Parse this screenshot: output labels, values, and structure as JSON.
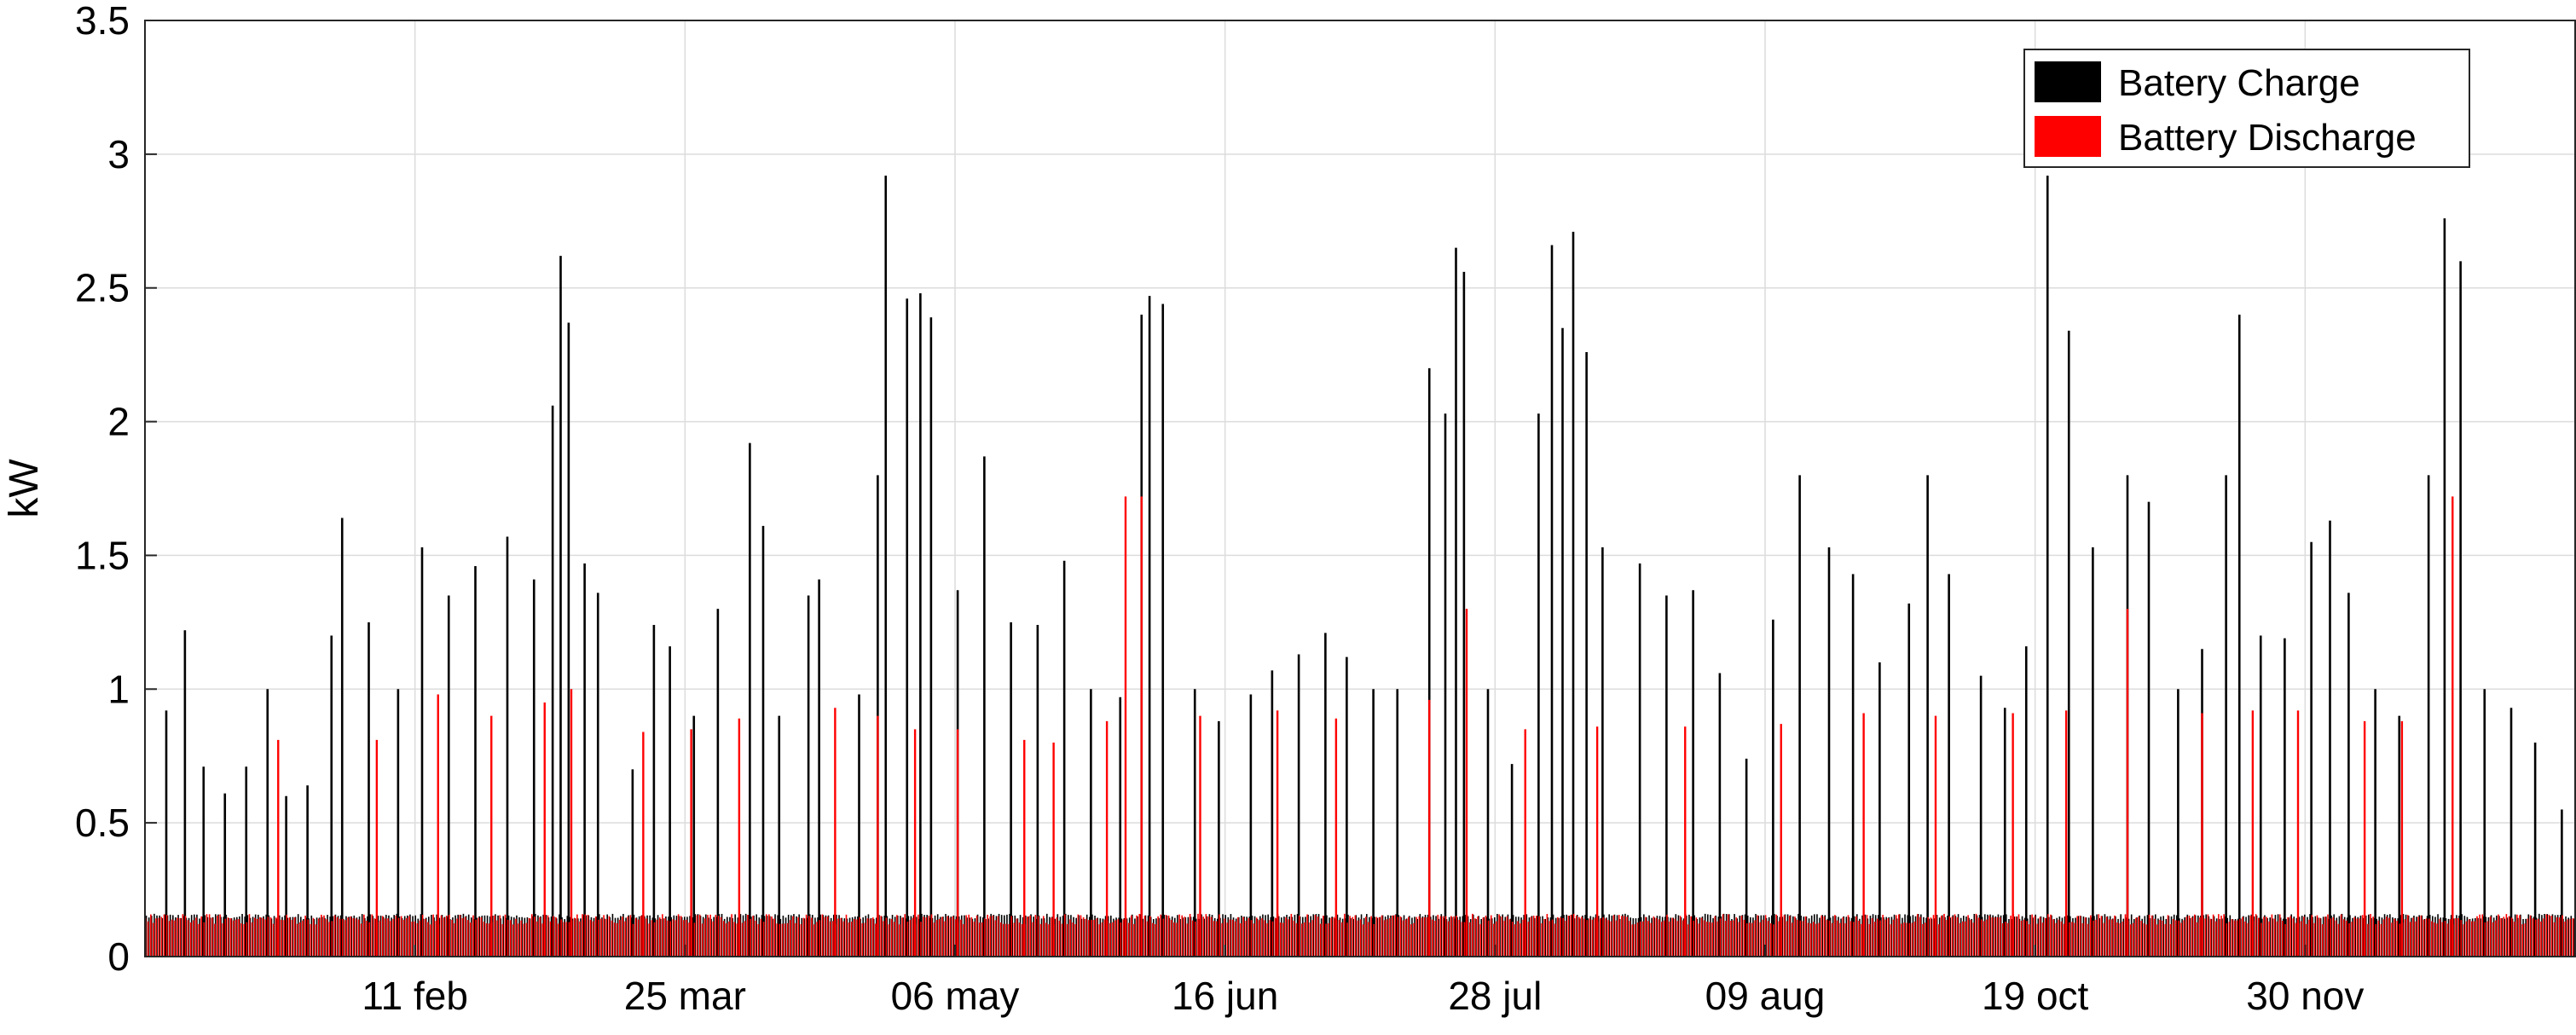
{
  "chart_data": {
    "type": "bar",
    "title": "",
    "xlabel": "",
    "ylabel": "kW",
    "ylim": [
      0,
      3.5
    ],
    "yticks": [
      {
        "value": 0,
        "label": "0"
      },
      {
        "value": 0.5,
        "label": "0.5"
      },
      {
        "value": 1,
        "label": "1"
      },
      {
        "value": 1.5,
        "label": "1.5"
      },
      {
        "value": 2,
        "label": "2"
      },
      {
        "value": 2.5,
        "label": "2.5"
      },
      {
        "value": 3,
        "label": "3"
      },
      {
        "value": 3.5,
        "label": "3.5"
      }
    ],
    "xticks": [
      "11 feb",
      "25 mar",
      "06 may",
      "16 jun",
      "28 jul",
      "09 aug",
      "19 oct",
      "30 nov"
    ],
    "grid": true,
    "legend_position": "top-right",
    "series": [
      {
        "name": "Batery Charge",
        "color": "#000000",
        "peaks": [
          {
            "day": 8,
            "value": 0.92
          },
          {
            "day": 15,
            "value": 1.22
          },
          {
            "day": 22,
            "value": 0.71
          },
          {
            "day": 30,
            "value": 0.61
          },
          {
            "day": 38,
            "value": 0.71
          },
          {
            "day": 46,
            "value": 1.0
          },
          {
            "day": 53,
            "value": 0.6
          },
          {
            "day": 61,
            "value": 0.64
          },
          {
            "day": 70,
            "value": 1.2
          },
          {
            "day": 74,
            "value": 1.64
          },
          {
            "day": 84,
            "value": 1.25
          },
          {
            "day": 95,
            "value": 1.0
          },
          {
            "day": 104,
            "value": 1.53
          },
          {
            "day": 114,
            "value": 1.35
          },
          {
            "day": 124,
            "value": 1.46
          },
          {
            "day": 136,
            "value": 1.57
          },
          {
            "day": 146,
            "value": 1.41
          },
          {
            "day": 153,
            "value": 2.06
          },
          {
            "day": 156,
            "value": 2.62
          },
          {
            "day": 159,
            "value": 2.37
          },
          {
            "day": 165,
            "value": 1.47
          },
          {
            "day": 170,
            "value": 1.36
          },
          {
            "day": 183,
            "value": 0.7
          },
          {
            "day": 191,
            "value": 1.24
          },
          {
            "day": 197,
            "value": 1.16
          },
          {
            "day": 206,
            "value": 0.9
          },
          {
            "day": 215,
            "value": 1.3
          },
          {
            "day": 227,
            "value": 1.92
          },
          {
            "day": 232,
            "value": 1.61
          },
          {
            "day": 238,
            "value": 0.9
          },
          {
            "day": 249,
            "value": 1.35
          },
          {
            "day": 253,
            "value": 1.41
          },
          {
            "day": 268,
            "value": 0.98
          },
          {
            "day": 275,
            "value": 1.8
          },
          {
            "day": 278,
            "value": 2.92
          },
          {
            "day": 286,
            "value": 2.46
          },
          {
            "day": 291,
            "value": 2.48
          },
          {
            "day": 295,
            "value": 2.39
          },
          {
            "day": 305,
            "value": 1.37
          },
          {
            "day": 315,
            "value": 1.87
          },
          {
            "day": 325,
            "value": 1.25
          },
          {
            "day": 335,
            "value": 1.24
          },
          {
            "day": 345,
            "value": 1.48
          },
          {
            "day": 355,
            "value": 1.0
          },
          {
            "day": 366,
            "value": 0.97
          },
          {
            "day": 374,
            "value": 2.4
          },
          {
            "day": 377,
            "value": 2.47
          },
          {
            "day": 382,
            "value": 2.44
          },
          {
            "day": 394,
            "value": 1.0
          },
          {
            "day": 403,
            "value": 0.88
          },
          {
            "day": 415,
            "value": 0.98
          },
          {
            "day": 423,
            "value": 1.07
          },
          {
            "day": 433,
            "value": 1.13
          },
          {
            "day": 443,
            "value": 1.21
          },
          {
            "day": 451,
            "value": 1.12
          },
          {
            "day": 461,
            "value": 1.0
          },
          {
            "day": 470,
            "value": 1.0
          },
          {
            "day": 482,
            "value": 2.2
          },
          {
            "day": 488,
            "value": 2.03
          },
          {
            "day": 492,
            "value": 2.65
          },
          {
            "day": 495,
            "value": 2.56
          },
          {
            "day": 504,
            "value": 1.0
          },
          {
            "day": 513,
            "value": 0.72
          },
          {
            "day": 523,
            "value": 2.03
          },
          {
            "day": 528,
            "value": 2.66
          },
          {
            "day": 532,
            "value": 2.35
          },
          {
            "day": 536,
            "value": 2.71
          },
          {
            "day": 541,
            "value": 2.26
          },
          {
            "day": 547,
            "value": 1.53
          },
          {
            "day": 561,
            "value": 1.47
          },
          {
            "day": 571,
            "value": 1.35
          },
          {
            "day": 581,
            "value": 1.37
          },
          {
            "day": 591,
            "value": 1.06
          },
          {
            "day": 601,
            "value": 0.74
          },
          {
            "day": 611,
            "value": 1.26
          },
          {
            "day": 621,
            "value": 1.8
          },
          {
            "day": 632,
            "value": 1.53
          },
          {
            "day": 641,
            "value": 1.43
          },
          {
            "day": 651,
            "value": 1.1
          },
          {
            "day": 662,
            "value": 1.32
          },
          {
            "day": 669,
            "value": 1.8
          },
          {
            "day": 677,
            "value": 1.43
          },
          {
            "day": 689,
            "value": 1.05
          },
          {
            "day": 698,
            "value": 0.93
          },
          {
            "day": 706,
            "value": 1.16
          },
          {
            "day": 714,
            "value": 2.92
          },
          {
            "day": 722,
            "value": 2.34
          },
          {
            "day": 731,
            "value": 1.53
          },
          {
            "day": 744,
            "value": 1.8
          },
          {
            "day": 752,
            "value": 1.7
          },
          {
            "day": 763,
            "value": 1.0
          },
          {
            "day": 772,
            "value": 1.15
          },
          {
            "day": 781,
            "value": 1.8
          },
          {
            "day": 786,
            "value": 2.4
          },
          {
            "day": 794,
            "value": 1.2
          },
          {
            "day": 803,
            "value": 1.19
          },
          {
            "day": 813,
            "value": 1.55
          },
          {
            "day": 820,
            "value": 1.63
          },
          {
            "day": 827,
            "value": 1.36
          },
          {
            "day": 837,
            "value": 1.0
          },
          {
            "day": 846,
            "value": 0.9
          },
          {
            "day": 857,
            "value": 1.8
          },
          {
            "day": 863,
            "value": 2.76
          },
          {
            "day": 869,
            "value": 2.6
          },
          {
            "day": 878,
            "value": 1.0
          },
          {
            "day": 888,
            "value": 0.93
          },
          {
            "day": 897,
            "value": 0.8
          },
          {
            "day": 907,
            "value": 0.55
          }
        ]
      },
      {
        "name": "Battery Discharge",
        "color": "#ff0000",
        "peaks": [
          {
            "day": 50,
            "value": 0.81
          },
          {
            "day": 87,
            "value": 0.81
          },
          {
            "day": 110,
            "value": 0.98
          },
          {
            "day": 130,
            "value": 0.9
          },
          {
            "day": 150,
            "value": 0.95
          },
          {
            "day": 160,
            "value": 1.0
          },
          {
            "day": 187,
            "value": 0.84
          },
          {
            "day": 205,
            "value": 0.85
          },
          {
            "day": 223,
            "value": 0.89
          },
          {
            "day": 259,
            "value": 0.93
          },
          {
            "day": 275,
            "value": 0.9
          },
          {
            "day": 289,
            "value": 0.85
          },
          {
            "day": 305,
            "value": 0.85
          },
          {
            "day": 330,
            "value": 0.81
          },
          {
            "day": 341,
            "value": 0.8
          },
          {
            "day": 361,
            "value": 0.88
          },
          {
            "day": 368,
            "value": 1.72
          },
          {
            "day": 374,
            "value": 1.72
          },
          {
            "day": 396,
            "value": 0.9
          },
          {
            "day": 425,
            "value": 0.92
          },
          {
            "day": 447,
            "value": 0.89
          },
          {
            "day": 482,
            "value": 0.96
          },
          {
            "day": 496,
            "value": 1.3
          },
          {
            "day": 518,
            "value": 0.85
          },
          {
            "day": 545,
            "value": 0.86
          },
          {
            "day": 578,
            "value": 0.86
          },
          {
            "day": 614,
            "value": 0.87
          },
          {
            "day": 645,
            "value": 0.91
          },
          {
            "day": 672,
            "value": 0.9
          },
          {
            "day": 701,
            "value": 0.91
          },
          {
            "day": 721,
            "value": 0.92
          },
          {
            "day": 744,
            "value": 1.3
          },
          {
            "day": 772,
            "value": 0.91
          },
          {
            "day": 791,
            "value": 0.92
          },
          {
            "day": 808,
            "value": 0.92
          },
          {
            "day": 833,
            "value": 0.88
          },
          {
            "day": 847,
            "value": 0.88
          },
          {
            "day": 866,
            "value": 1.72
          }
        ]
      }
    ]
  }
}
